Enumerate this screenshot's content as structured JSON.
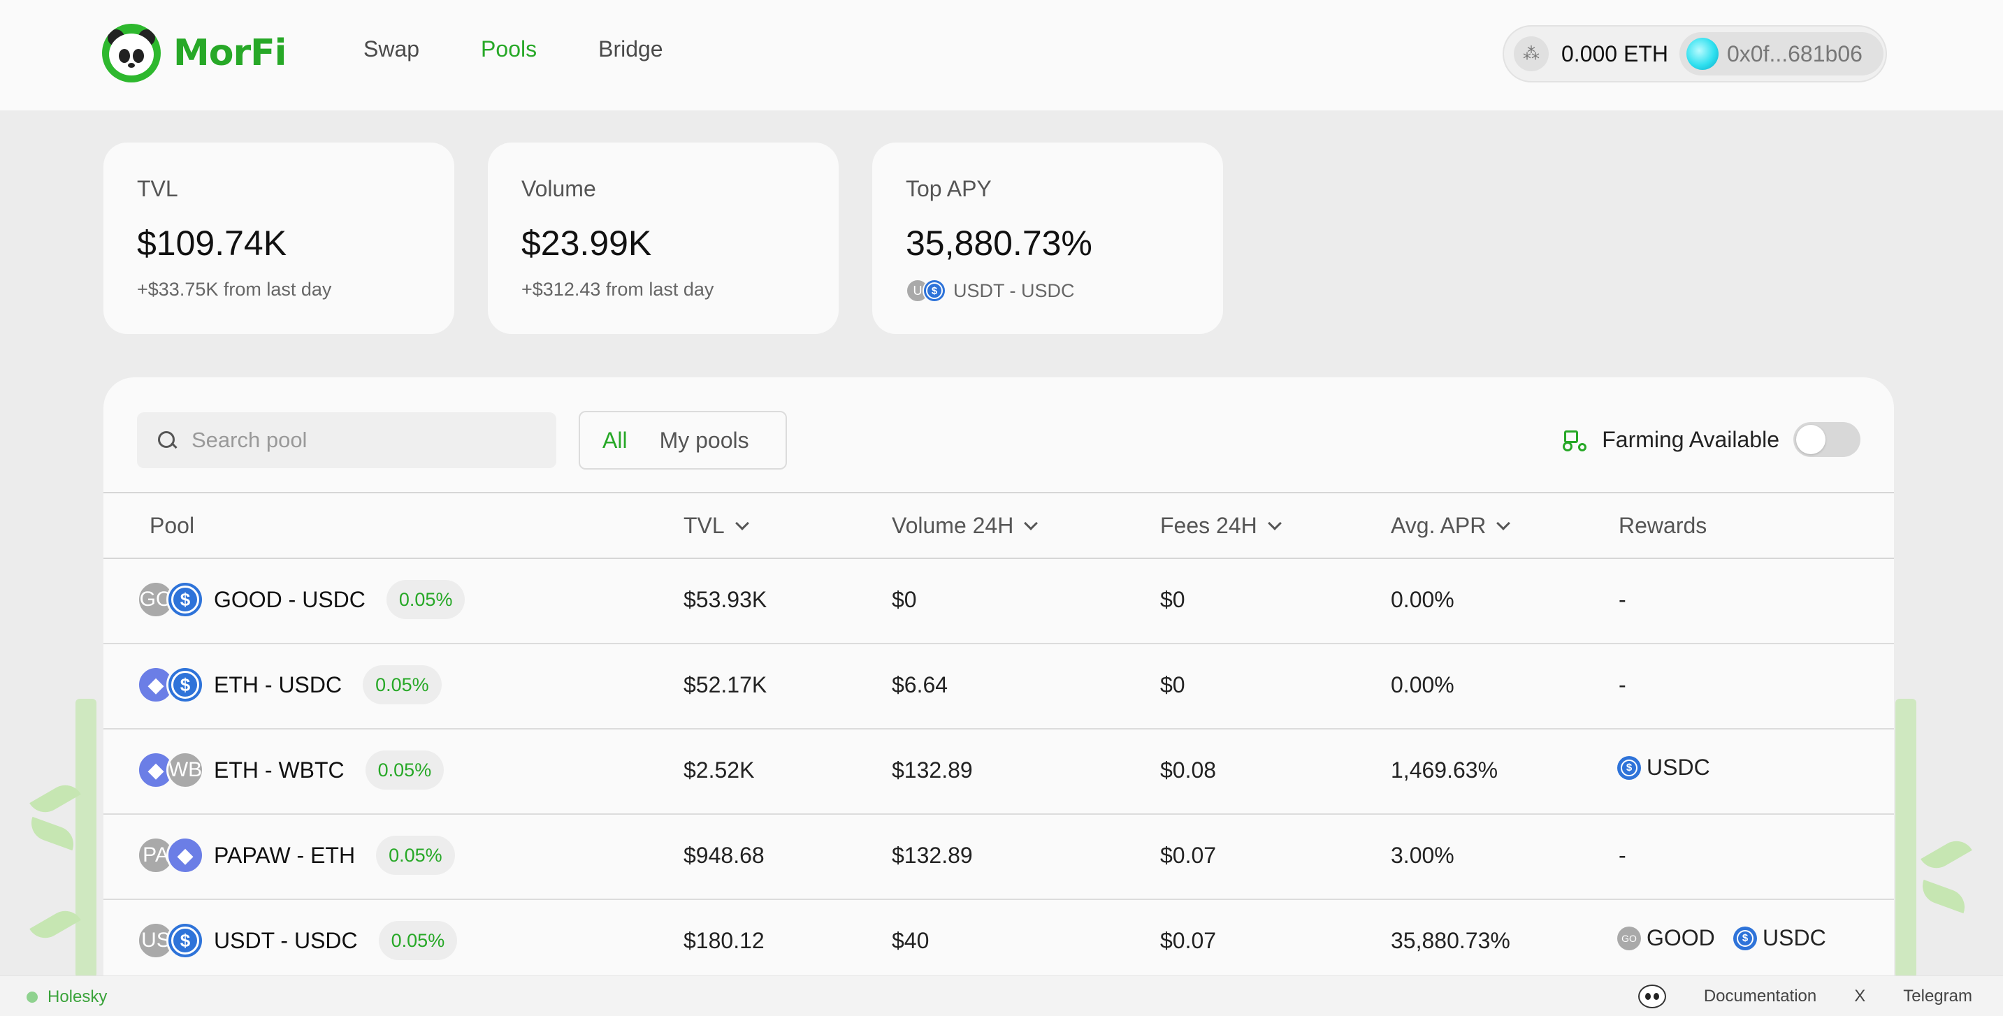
{
  "brand": {
    "name": "MorFi"
  },
  "nav": [
    {
      "label": "Swap",
      "active": false
    },
    {
      "label": "Pools",
      "active": true
    },
    {
      "label": "Bridge",
      "active": false
    }
  ],
  "wallet": {
    "balance": "0.000 ETH",
    "address": "0x0f...681b06"
  },
  "stats": {
    "tvl": {
      "label": "TVL",
      "value": "$109.74K",
      "change": "+$33.75K from last day"
    },
    "volume": {
      "label": "Volume",
      "value": "$23.99K",
      "change": "+$312.43 from last day"
    },
    "top_apy": {
      "label": "Top APY",
      "value": "35,880.73%",
      "pair": "USDT - USDC",
      "token_a_abbr": "U"
    }
  },
  "filters": {
    "search_placeholder": "Search pool",
    "tabs": [
      {
        "label": "All",
        "active": true
      },
      {
        "label": "My pools",
        "active": false
      }
    ],
    "farming_label": "Farming Available",
    "farming_enabled": false
  },
  "table": {
    "columns": {
      "pool": "Pool",
      "tvl": "TVL",
      "volume": "Volume 24H",
      "fees": "Fees 24H",
      "apr": "Avg. APR",
      "rewards": "Rewards"
    },
    "rows": [
      {
        "pair": "GOOD - USDC",
        "token_a": "GO",
        "token_b": "$",
        "fee": "0.05%",
        "tvl": "$53.93K",
        "volume": "$0",
        "fees": "$0",
        "apr": "0.00%",
        "rewards_text": "-"
      },
      {
        "pair": "ETH - USDC",
        "token_a": "◆",
        "token_b": "$",
        "fee": "0.05%",
        "tvl": "$52.17K",
        "volume": "$6.64",
        "fees": "$0",
        "apr": "0.00%",
        "rewards_text": "-"
      },
      {
        "pair": "ETH - WBTC",
        "token_a": "◆",
        "token_b": "WB",
        "fee": "0.05%",
        "tvl": "$2.52K",
        "volume": "$132.89",
        "fees": "$0.08",
        "apr": "1,469.63%",
        "reward_1": "USDC"
      },
      {
        "pair": "PAPAW - ETH",
        "token_a": "PA",
        "token_b": "◆",
        "fee": "0.05%",
        "tvl": "$948.68",
        "volume": "$132.89",
        "fees": "$0.07",
        "apr": "3.00%",
        "rewards_text": "-"
      },
      {
        "pair": "USDT - USDC",
        "token_a": "US",
        "token_b": "$",
        "fee": "0.05%",
        "tvl": "$180.12",
        "volume": "$40",
        "fees": "$0.07",
        "apr": "35,880.73%",
        "reward_1": "GOOD",
        "reward_1_abbr": "GO",
        "reward_2": "USDC"
      }
    ]
  },
  "footer": {
    "network": "Holesky",
    "links": {
      "docs": "Documentation",
      "x": "X",
      "telegram": "Telegram"
    }
  },
  "colors": {
    "accent": "#27a827",
    "usdc": "#2e73d9",
    "eth": "#6b7ee6",
    "page_bg": "#ececec"
  }
}
